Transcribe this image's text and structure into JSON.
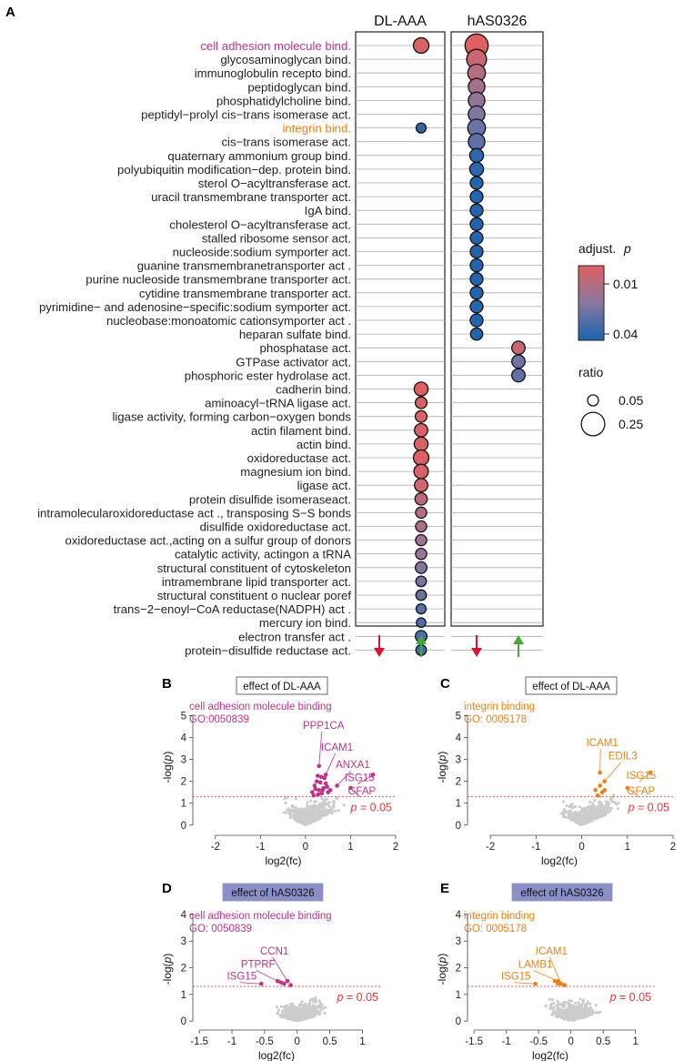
{
  "panel_labels": {
    "a": "A",
    "b": "B",
    "c": "C",
    "d": "D",
    "e": "E"
  },
  "colors": {
    "red": "#e06060",
    "mid": "#8878a0",
    "blue": "#1c64ae",
    "magenta": "#c2308c",
    "orange": "#f07f10",
    "grey": "#cccccc",
    "threshold": "#ee3333",
    "arrow_down": "#e0102f",
    "arrow_up": "#44aa33"
  },
  "chart_data": [
    {
      "type": "dot",
      "title": "",
      "columns": [
        "DL-AAA",
        "hAS0326"
      ],
      "direction_arrows": [
        "down",
        "up",
        "down",
        "up"
      ],
      "terms": [
        {
          "label": "cell adhesion molecule bind.",
          "color": "magenta"
        },
        {
          "label": "glycosaminoglycan bind."
        },
        {
          "label": "immunoglobulin recepto bind."
        },
        {
          "label": "peptidoglycan bind."
        },
        {
          "label": "phosphatidylcholine bind."
        },
        {
          "label": "peptidyl−prolyl cis−trans isomerase act."
        },
        {
          "label": "integrin bind.",
          "color": "orange"
        },
        {
          "label": "cis−trans isomerase act."
        },
        {
          "label": "quaternary ammonium group bind."
        },
        {
          "label": "polyubiquitin modification−dep. protein bind."
        },
        {
          "label": "sterol O−acyltransferase act."
        },
        {
          "label": "uracil transmembrane transporter act."
        },
        {
          "label": "IgA bind."
        },
        {
          "label": "cholesterol O−acyltransferase act."
        },
        {
          "label": "stalled ribosome sensor act."
        },
        {
          "label": "nucleoside:sodium symporter act."
        },
        {
          "label": "guanine transmembranetransporter act ."
        },
        {
          "label": "purine nucleoside transmembrane transporter act."
        },
        {
          "label": "cytidine transmembrane transporter act."
        },
        {
          "label": "pyrimidine− and adenosine−specific:sodium symporter act."
        },
        {
          "label": "nucleobase:monoatomic cationsymporter act ."
        },
        {
          "label": "heparan sulfate bind."
        },
        {
          "label": "phosphatase act."
        },
        {
          "label": "GTPase activator act."
        },
        {
          "label": "phosphoric ester hydrolase act."
        },
        {
          "label": "cadherin bind."
        },
        {
          "label": "aminoacyl−tRNA ligase act."
        },
        {
          "label": "ligase activity, forming carbon−oxygen bonds"
        },
        {
          "label": "actin filament bind."
        },
        {
          "label": "actin bind."
        },
        {
          "label": "oxidoreductase act."
        },
        {
          "label": "magnesium ion bind."
        },
        {
          "label": "ligase act."
        },
        {
          "label": "protein disulfide isomeraseact."
        },
        {
          "label": "intramolecularoxidoreductase act .,  transposing S−S bonds"
        },
        {
          "label": "disulfide oxidoreductase act."
        },
        {
          "label": "oxidoreductase act.,acting on a sulfur group of  donors"
        },
        {
          "label": "catalytic activity, actingon a tRNA"
        },
        {
          "label": "structural constituent of  cytoskeleton"
        },
        {
          "label": "intramembrane lipid transporter act."
        },
        {
          "label": "structural constituent o nuclear poref"
        },
        {
          "label": "trans−2−enoyl−CoA reductase(NADPH) act ."
        },
        {
          "label": "mercury ion bind."
        },
        {
          "label": "electron transfer act ."
        },
        {
          "label": "protein−disulfide reductase act."
        }
      ],
      "dots": [
        {
          "term": 0,
          "col": "DL-AAA",
          "dir": "up",
          "p": 0.01,
          "ratio": 0.16
        },
        {
          "term": 6,
          "col": "DL-AAA",
          "dir": "up",
          "p": 0.038,
          "ratio": 0.06
        },
        {
          "term": 0,
          "col": "hAS0326",
          "dir": "down",
          "p": 0.008,
          "ratio": 0.3
        },
        {
          "term": 1,
          "col": "hAS0326",
          "dir": "down",
          "p": 0.012,
          "ratio": 0.24
        },
        {
          "term": 2,
          "col": "hAS0326",
          "dir": "down",
          "p": 0.016,
          "ratio": 0.2
        },
        {
          "term": 3,
          "col": "hAS0326",
          "dir": "down",
          "p": 0.019,
          "ratio": 0.18
        },
        {
          "term": 4,
          "col": "hAS0326",
          "dir": "down",
          "p": 0.022,
          "ratio": 0.18
        },
        {
          "term": 5,
          "col": "hAS0326",
          "dir": "down",
          "p": 0.025,
          "ratio": 0.18
        },
        {
          "term": 6,
          "col": "hAS0326",
          "dir": "down",
          "p": 0.028,
          "ratio": 0.2
        },
        {
          "term": 7,
          "col": "hAS0326",
          "dir": "down",
          "p": 0.03,
          "ratio": 0.18
        },
        {
          "term": 8,
          "col": "hAS0326",
          "dir": "down",
          "p": 0.038,
          "ratio": 0.13
        },
        {
          "term": 9,
          "col": "hAS0326",
          "dir": "down",
          "p": 0.038,
          "ratio": 0.13
        },
        {
          "term": 10,
          "col": "hAS0326",
          "dir": "down",
          "p": 0.039,
          "ratio": 0.11
        },
        {
          "term": 11,
          "col": "hAS0326",
          "dir": "down",
          "p": 0.039,
          "ratio": 0.11
        },
        {
          "term": 12,
          "col": "hAS0326",
          "dir": "down",
          "p": 0.039,
          "ratio": 0.11
        },
        {
          "term": 13,
          "col": "hAS0326",
          "dir": "down",
          "p": 0.039,
          "ratio": 0.11
        },
        {
          "term": 14,
          "col": "hAS0326",
          "dir": "down",
          "p": 0.039,
          "ratio": 0.11
        },
        {
          "term": 15,
          "col": "hAS0326",
          "dir": "down",
          "p": 0.039,
          "ratio": 0.11
        },
        {
          "term": 16,
          "col": "hAS0326",
          "dir": "down",
          "p": 0.039,
          "ratio": 0.11
        },
        {
          "term": 17,
          "col": "hAS0326",
          "dir": "down",
          "p": 0.039,
          "ratio": 0.11
        },
        {
          "term": 18,
          "col": "hAS0326",
          "dir": "down",
          "p": 0.039,
          "ratio": 0.11
        },
        {
          "term": 19,
          "col": "hAS0326",
          "dir": "down",
          "p": 0.039,
          "ratio": 0.11
        },
        {
          "term": 20,
          "col": "hAS0326",
          "dir": "down",
          "p": 0.039,
          "ratio": 0.11
        },
        {
          "term": 21,
          "col": "hAS0326",
          "dir": "down",
          "p": 0.039,
          "ratio": 0.1
        },
        {
          "term": 22,
          "col": "hAS0326",
          "dir": "up",
          "p": 0.012,
          "ratio": 0.12
        },
        {
          "term": 23,
          "col": "hAS0326",
          "dir": "up",
          "p": 0.028,
          "ratio": 0.12
        },
        {
          "term": 24,
          "col": "hAS0326",
          "dir": "up",
          "p": 0.03,
          "ratio": 0.12
        },
        {
          "term": 25,
          "col": "DL-AAA",
          "dir": "up",
          "p": 0.008,
          "ratio": 0.13
        },
        {
          "term": 26,
          "col": "DL-AAA",
          "dir": "up",
          "p": 0.009,
          "ratio": 0.09
        },
        {
          "term": 27,
          "col": "DL-AAA",
          "dir": "up",
          "p": 0.009,
          "ratio": 0.09
        },
        {
          "term": 28,
          "col": "DL-AAA",
          "dir": "up",
          "p": 0.009,
          "ratio": 0.12
        },
        {
          "term": 29,
          "col": "DL-AAA",
          "dir": "up",
          "p": 0.009,
          "ratio": 0.13
        },
        {
          "term": 30,
          "col": "DL-AAA",
          "dir": "up",
          "p": 0.009,
          "ratio": 0.16
        },
        {
          "term": 31,
          "col": "DL-AAA",
          "dir": "up",
          "p": 0.01,
          "ratio": 0.14
        },
        {
          "term": 32,
          "col": "DL-AAA",
          "dir": "up",
          "p": 0.011,
          "ratio": 0.12
        },
        {
          "term": 33,
          "col": "DL-AAA",
          "dir": "up",
          "p": 0.014,
          "ratio": 0.1
        },
        {
          "term": 34,
          "col": "DL-AAA",
          "dir": "up",
          "p": 0.016,
          "ratio": 0.08
        },
        {
          "term": 35,
          "col": "DL-AAA",
          "dir": "up",
          "p": 0.018,
          "ratio": 0.08
        },
        {
          "term": 36,
          "col": "DL-AAA",
          "dir": "up",
          "p": 0.02,
          "ratio": 0.08
        },
        {
          "term": 37,
          "col": "DL-AAA",
          "dir": "up",
          "p": 0.021,
          "ratio": 0.08
        },
        {
          "term": 38,
          "col": "DL-AAA",
          "dir": "up",
          "p": 0.025,
          "ratio": 0.09
        },
        {
          "term": 39,
          "col": "DL-AAA",
          "dir": "up",
          "p": 0.027,
          "ratio": 0.07
        },
        {
          "term": 40,
          "col": "DL-AAA",
          "dir": "up",
          "p": 0.029,
          "ratio": 0.07
        },
        {
          "term": 41,
          "col": "DL-AAA",
          "dir": "up",
          "p": 0.031,
          "ratio": 0.06
        },
        {
          "term": 42,
          "col": "DL-AAA",
          "dir": "up",
          "p": 0.032,
          "ratio": 0.05
        },
        {
          "term": 43,
          "col": "DL-AAA",
          "dir": "up",
          "p": 0.033,
          "ratio": 0.09
        },
        {
          "term": 44,
          "col": "DL-AAA",
          "dir": "up",
          "p": 0.034,
          "ratio": 0.07
        }
      ],
      "legend": {
        "color_title": "adjust.",
        "color_title_p": "p",
        "color_ticks": [
          "0.01",
          "0.04"
        ],
        "color_tick_values": [
          0.01,
          0.04
        ],
        "size_title": "ratio",
        "size_ticks": [
          "0.05",
          "0.25"
        ],
        "size_tick_values": [
          0.05,
          0.25
        ]
      }
    },
    {
      "type": "scatter",
      "panel": "B",
      "effect_label": "effect of DL-AAA",
      "effect_style": "plain",
      "term_label": "cell adhesion molecule binding",
      "term_id": "GO:0050839",
      "highlight_color": "magenta",
      "xlabel": "log2(fc)",
      "ylabel_prefix": "-log(",
      "ylabel_p": "p",
      "ylabel_suffix": ")",
      "xlim": [
        -2.5,
        2.0
      ],
      "ylim": [
        -0.3,
        5.6
      ],
      "xticks": [
        -2,
        -1,
        0,
        1,
        2
      ],
      "yticks": [
        0,
        1,
        2,
        3,
        4,
        5
      ],
      "threshold_label": "= 0.05",
      "threshold_y": 1.3,
      "genes": [
        {
          "name": "PPP1CA",
          "x": 0.3,
          "y": 2.7,
          "lx": 0.4,
          "ly": 4.4
        },
        {
          "name": "ICAM1",
          "x": 0.45,
          "y": 2.3,
          "lx": 0.7,
          "ly": 3.4
        },
        {
          "name": "ANXA1",
          "x": 0.7,
          "y": 1.8,
          "lx": 1.05,
          "ly": 2.6
        },
        {
          "name": "ISG15",
          "x": 1.5,
          "y": 2.3,
          "lx": 1.2,
          "ly": 2.0
        },
        {
          "name": "GFAP",
          "x": 1.0,
          "y": 1.7,
          "lx": 1.25,
          "ly": 1.4
        }
      ],
      "highlight_points": [
        [
          0.15,
          1.5
        ],
        [
          0.2,
          1.8
        ],
        [
          0.25,
          2.0
        ],
        [
          0.3,
          1.6
        ],
        [
          0.35,
          2.2
        ],
        [
          0.4,
          1.7
        ],
        [
          0.45,
          1.9
        ],
        [
          0.5,
          1.5
        ],
        [
          0.28,
          1.4
        ],
        [
          0.38,
          1.6
        ],
        [
          0.22,
          1.65
        ],
        [
          0.33,
          1.95
        ],
        [
          0.42,
          2.15
        ],
        [
          0.18,
          1.35
        ],
        [
          0.48,
          1.75
        ],
        [
          0.55,
          1.6
        ],
        [
          0.27,
          2.25
        ],
        [
          0.36,
          1.45
        ]
      ]
    },
    {
      "type": "scatter",
      "panel": "C",
      "effect_label": "effect of DL-AAA",
      "effect_style": "plain",
      "term_label": "integrin binding",
      "term_id": "GO: 0005178",
      "highlight_color": "orange",
      "xlabel": "log2(fc)",
      "ylabel_prefix": "-log(",
      "ylabel_p": "p",
      "ylabel_suffix": ")",
      "xlim": [
        -2.5,
        2.0
      ],
      "ylim": [
        -0.3,
        5.6
      ],
      "xticks": [
        -2,
        -1,
        0,
        1,
        2
      ],
      "yticks": [
        0,
        1,
        2,
        3,
        4,
        5
      ],
      "threshold_label": "= 0.05",
      "threshold_y": 1.3,
      "genes": [
        {
          "name": "ICAM1",
          "x": 0.4,
          "y": 2.4,
          "lx": 0.45,
          "ly": 3.6
        },
        {
          "name": "EDIL3",
          "x": 0.5,
          "y": 2.0,
          "lx": 0.9,
          "ly": 3.0
        },
        {
          "name": "ISG15",
          "x": 1.5,
          "y": 2.4,
          "lx": 1.3,
          "ly": 2.1
        },
        {
          "name": "GFAP",
          "x": 1.0,
          "y": 1.7,
          "lx": 1.3,
          "ly": 1.4
        }
      ],
      "highlight_points": [
        [
          0.3,
          1.6
        ],
        [
          0.4,
          1.8
        ],
        [
          0.45,
          1.5
        ],
        [
          0.35,
          1.35
        ],
        [
          0.5,
          1.6
        ]
      ]
    },
    {
      "type": "scatter",
      "panel": "D",
      "effect_label": "effect of hAS0326",
      "effect_style": "filled",
      "term_label": "cell adhesion molecule binding",
      "term_id": "GO: 0050839",
      "highlight_color": "magenta",
      "xlabel": "log2(fc)",
      "ylabel_prefix": "-log(",
      "ylabel_p": "p",
      "ylabel_suffix": ")",
      "xlim": [
        -1.6,
        1.3
      ],
      "ylim": [
        -0.2,
        4.1
      ],
      "xticks": [
        -1.5,
        -1,
        -0.5,
        0,
        0.5,
        1
      ],
      "yticks": [
        0,
        1,
        2,
        3,
        4
      ],
      "threshold_label": "= 0.05",
      "threshold_y": 1.3,
      "genes": [
        {
          "name": "CCN1",
          "x": -0.15,
          "y": 1.5,
          "lx": -0.35,
          "ly": 2.5
        },
        {
          "name": "PTPRF",
          "x": -0.3,
          "y": 1.5,
          "lx": -0.6,
          "ly": 2.0
        },
        {
          "name": "ISG15",
          "x": -0.55,
          "y": 1.4,
          "lx": -0.85,
          "ly": 1.55
        }
      ],
      "highlight_points": [
        [
          -0.2,
          1.4
        ],
        [
          -0.15,
          1.5
        ],
        [
          -0.1,
          1.35
        ],
        [
          -0.25,
          1.45
        ],
        [
          -0.3,
          1.5
        ]
      ]
    },
    {
      "type": "scatter",
      "panel": "E",
      "effect_label": "effect of hAS0326",
      "effect_style": "filled",
      "term_label": "integrin binding",
      "term_id": "GO: 0005178",
      "highlight_color": "orange",
      "xlabel": "log2(fc)",
      "ylabel_prefix": "-log(",
      "ylabel_p": "p",
      "ylabel_suffix": ")",
      "xlim": [
        -1.6,
        1.3
      ],
      "ylim": [
        -0.2,
        4.1
      ],
      "xticks": [
        -1.5,
        -1,
        -0.5,
        0,
        0.5,
        1
      ],
      "yticks": [
        0,
        1,
        2,
        3,
        4
      ],
      "threshold_label": "= 0.05",
      "threshold_y": 1.3,
      "genes": [
        {
          "name": "ICAM1",
          "x": -0.15,
          "y": 1.4,
          "lx": -0.3,
          "ly": 2.5
        },
        {
          "name": "LAMB1",
          "x": -0.2,
          "y": 1.5,
          "lx": -0.55,
          "ly": 2.0
        },
        {
          "name": "ISG15",
          "x": -0.55,
          "y": 1.4,
          "lx": -0.85,
          "ly": 1.55
        }
      ],
      "highlight_points": [
        [
          -0.2,
          1.4
        ],
        [
          -0.1,
          1.35
        ],
        [
          -0.25,
          1.5
        ]
      ]
    }
  ]
}
